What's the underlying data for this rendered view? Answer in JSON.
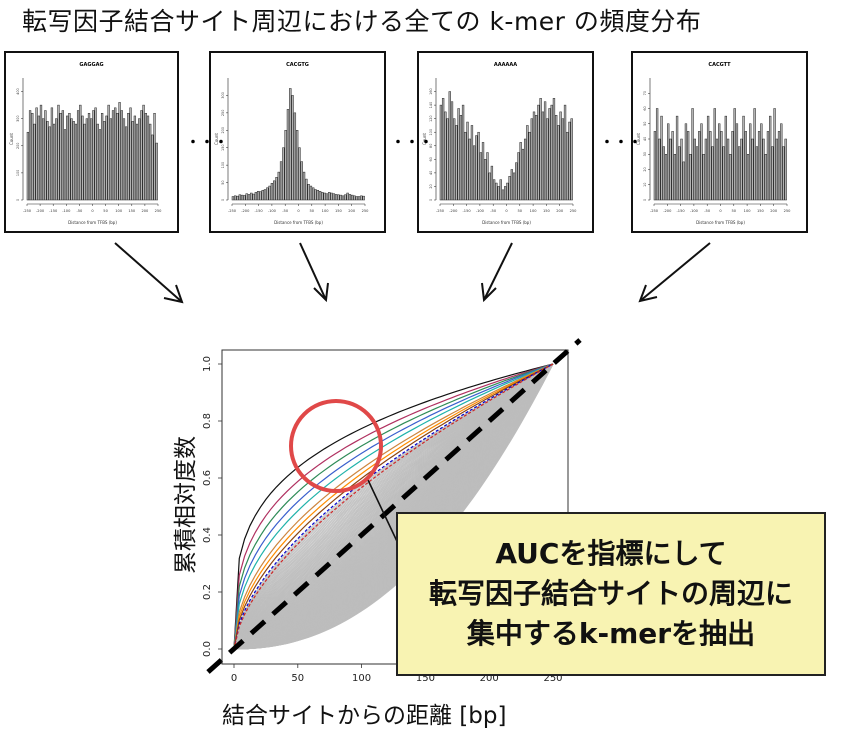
{
  "heading": "転写因子結合サイト周辺における全ての k-mer の頻度分布",
  "callout": {
    "line1": "AUCを指標にして",
    "line2": "転写因子結合サイトの周辺に",
    "line3": "集中するk-merを抽出"
  },
  "ellipsis": "・・・",
  "chart_data": [
    {
      "type": "bar",
      "title": "GAGGAG",
      "xlabel": "Distance from TFBS (bp)",
      "ylabel": "Count",
      "xlim": [
        -250,
        250
      ],
      "ylim": [
        0,
        450
      ],
      "xticks": [
        "-250",
        "-200",
        "-150",
        "-100",
        "-50",
        "0",
        "50",
        "100",
        "150",
        "200",
        "250"
      ],
      "yticks": [
        "0",
        "100",
        "200",
        "300",
        "400"
      ],
      "values": [
        250,
        330,
        320,
        280,
        340,
        310,
        350,
        300,
        330,
        290,
        270,
        340,
        280,
        300,
        350,
        320,
        330,
        260,
        310,
        320,
        300,
        290,
        280,
        330,
        350,
        310,
        280,
        300,
        320,
        300,
        330,
        340,
        280,
        260,
        320,
        290,
        310,
        350,
        300,
        330,
        340,
        320,
        360,
        330,
        300,
        270,
        320,
        340,
        290,
        310,
        280,
        300,
        330,
        350,
        320,
        310,
        280,
        240,
        320,
        210
      ]
    },
    {
      "type": "bar",
      "title": "CACGTG",
      "xlabel": "Distance from TFBS (bp)",
      "ylabel": "Count",
      "xlim": [
        -250,
        250
      ],
      "ylim": [
        0,
        350
      ],
      "xticks": [
        "-250",
        "-200",
        "-150",
        "-100",
        "-50",
        "0",
        "50",
        "100",
        "150",
        "200",
        "250"
      ],
      "yticks": [
        "0",
        "50",
        "100",
        "150",
        "200",
        "250",
        "300"
      ],
      "values": [
        10,
        12,
        11,
        15,
        14,
        13,
        18,
        16,
        20,
        17,
        22,
        25,
        24,
        28,
        30,
        35,
        40,
        48,
        55,
        65,
        80,
        110,
        150,
        200,
        260,
        320,
        300,
        250,
        200,
        150,
        110,
        80,
        60,
        45,
        40,
        35,
        30,
        28,
        25,
        22,
        20,
        18,
        22,
        20,
        18,
        16,
        15,
        14,
        12,
        15,
        20,
        16,
        14,
        12,
        10,
        10,
        12,
        11
      ]
    },
    {
      "type": "bar",
      "title": "AAAAAA",
      "xlabel": "Distance from TFBS (bp)",
      "ylabel": "Count",
      "xlim": [
        -250,
        250
      ],
      "ylim": [
        0,
        180
      ],
      "xticks": [
        "-250",
        "-200",
        "-150",
        "-100",
        "-50",
        "0",
        "50",
        "100",
        "150",
        "200",
        "250"
      ],
      "yticks": [
        "0",
        "20",
        "40",
        "60",
        "80",
        "100",
        "120",
        "140",
        "160"
      ],
      "values": [
        140,
        150,
        130,
        120,
        160,
        145,
        120,
        110,
        135,
        125,
        140,
        100,
        115,
        90,
        110,
        80,
        95,
        100,
        70,
        85,
        60,
        70,
        40,
        50,
        30,
        25,
        20,
        30,
        15,
        20,
        25,
        35,
        45,
        40,
        55,
        70,
        85,
        75,
        90,
        110,
        100,
        120,
        130,
        125,
        140,
        150,
        130,
        145,
        120,
        135,
        140,
        150,
        125,
        110,
        130,
        120,
        140,
        100,
        115,
        120
      ]
    },
    {
      "type": "bar",
      "title": "CACGTT",
      "xlabel": "Distance from TFBS (bp)",
      "ylabel": "Count",
      "xlim": [
        -250,
        250
      ],
      "ylim": [
        0,
        80
      ],
      "xticks": [
        "-250",
        "-200",
        "-150",
        "-100",
        "-50",
        "0",
        "50",
        "100",
        "150",
        "200",
        "250"
      ],
      "yticks": [
        "0",
        "10",
        "20",
        "30",
        "40",
        "50",
        "60",
        "70"
      ],
      "values": [
        45,
        60,
        40,
        55,
        35,
        30,
        50,
        40,
        45,
        30,
        55,
        35,
        40,
        25,
        50,
        45,
        30,
        60,
        40,
        35,
        45,
        50,
        30,
        40,
        55,
        45,
        35,
        60,
        40,
        50,
        45,
        35,
        55,
        40,
        30,
        45,
        60,
        50,
        35,
        40,
        55,
        45,
        30,
        50,
        40,
        60,
        35,
        45,
        50,
        40,
        30,
        45,
        55,
        35,
        60,
        40,
        45,
        50,
        35,
        40
      ]
    },
    {
      "type": "line",
      "xlabel": "結合サイトからの距離 [bp]",
      "ylabel": "累積相対度数",
      "xlim": [
        0,
        250
      ],
      "ylim": [
        0,
        1
      ],
      "xticks": [
        "0",
        "50",
        "100",
        "150",
        "200",
        "250"
      ],
      "yticks": [
        "0.0",
        "0.2",
        "0.4",
        "0.6",
        "0.8",
        "1.0"
      ],
      "background_curves": {
        "color": "#bdbdbd",
        "count": 160,
        "exponent_range": [
          0.6,
          2.2
        ]
      },
      "highlighted_curves": [
        {
          "color": "#111111",
          "exponent": 0.28
        },
        {
          "color": "#b03060",
          "exponent": 0.33
        },
        {
          "color": "#2e8b57",
          "exponent": 0.37
        },
        {
          "color": "#3a5fcd",
          "exponent": 0.41
        },
        {
          "color": "#20b2aa",
          "exponent": 0.45
        },
        {
          "color": "#cd853f",
          "exponent": 0.5
        },
        {
          "color": "#ff8c00",
          "exponent": 0.53
        },
        {
          "color": "#8b4513",
          "exponent": 0.56
        },
        {
          "color": "#0000cd",
          "exponent": 0.59,
          "dashed": true
        },
        {
          "color": "#cd2626",
          "exponent": 0.62,
          "dashed": true
        }
      ],
      "diagonal": {
        "style": "dashed",
        "color": "#000000"
      },
      "highlight_circle_color": "#e04848"
    }
  ]
}
